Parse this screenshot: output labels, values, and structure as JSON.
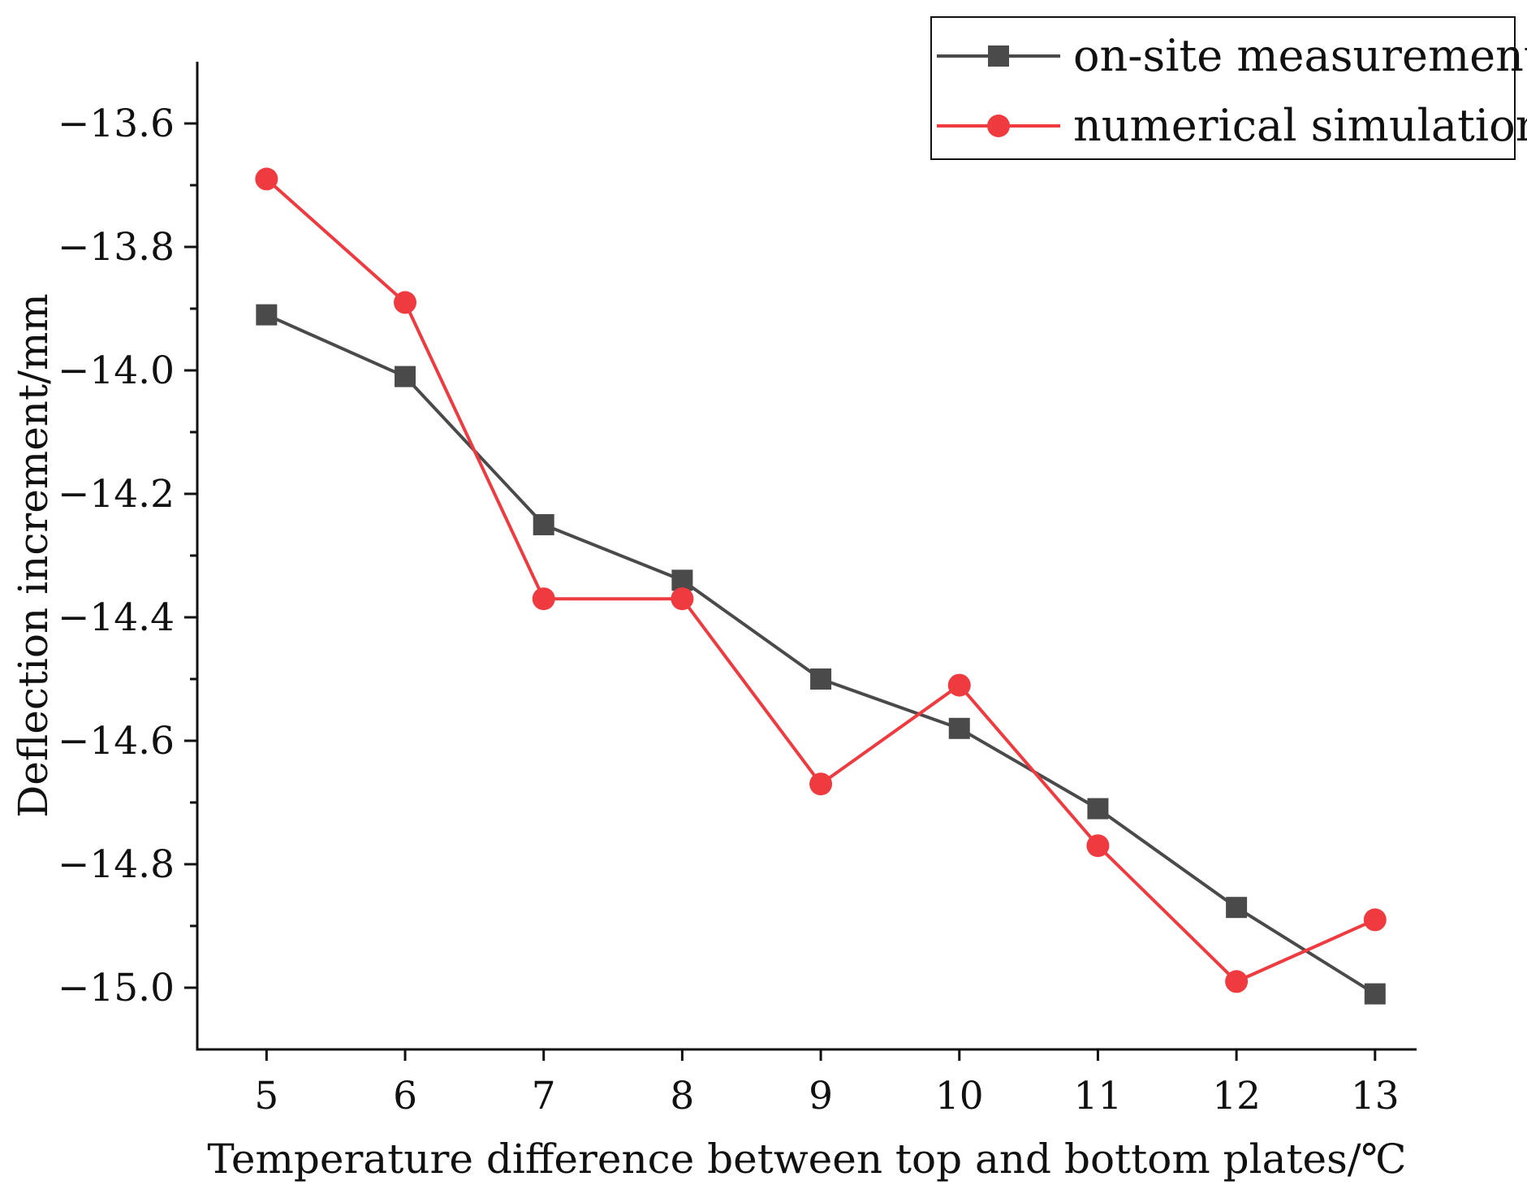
{
  "chart_data": {
    "type": "line",
    "title": "",
    "xlabel": "Temperature difference between top and bottom plates/℃",
    "ylabel": "Deflection increment/mm",
    "xlim": [
      4.5,
      13.3
    ],
    "ylim": [
      -15.1,
      -13.5
    ],
    "x": [
      5,
      6,
      7,
      8,
      9,
      10,
      11,
      12,
      13
    ],
    "xticks": [
      5,
      6,
      7,
      8,
      9,
      10,
      11,
      12,
      13
    ],
    "xtick_labels": [
      "5",
      "6",
      "7",
      "8",
      "9",
      "10",
      "11",
      "12",
      "13"
    ],
    "yticks": [
      -13.6,
      -13.8,
      -14.0,
      -14.2,
      -14.4,
      -14.6,
      -14.8,
      -15.0
    ],
    "ytick_labels": [
      "−13.6",
      "−13.8",
      "−14.0",
      "−14.2",
      "−14.4",
      "−14.6",
      "−14.8",
      "−15.0"
    ],
    "y_minor_step": 0.1,
    "grid": false,
    "legend_position": "top-right",
    "series": [
      {
        "name": "on-site measurement",
        "color": "#4a4a4a",
        "marker": "square",
        "values": [
          -13.91,
          -14.01,
          -14.25,
          -14.34,
          -14.5,
          -14.58,
          -14.71,
          -14.87,
          -15.01
        ]
      },
      {
        "name": "numerical simulation",
        "color": "#ef3b3f",
        "marker": "circle",
        "values": [
          -13.69,
          -13.89,
          -14.37,
          -14.37,
          -14.67,
          -14.51,
          -14.77,
          -14.99,
          -14.89
        ]
      }
    ]
  }
}
